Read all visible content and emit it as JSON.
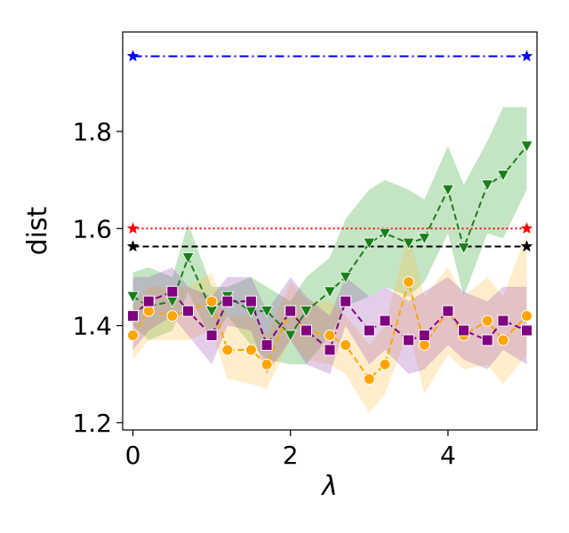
{
  "chart_data": {
    "type": "line",
    "xlabel": "λ",
    "ylabel": "dist",
    "xlim": [
      -0.13,
      5.13
    ],
    "ylim": [
      1.185,
      2.005
    ],
    "xticks": [
      0,
      2,
      4
    ],
    "xtick_labels": [
      "0",
      "2",
      "4"
    ],
    "yticks": [
      1.2,
      1.4,
      1.6,
      1.8
    ],
    "ytick_labels": [
      "1.2",
      "1.4",
      "1.6",
      "1.8"
    ],
    "grid": false,
    "legend": null,
    "x": [
      0,
      0.2,
      0.5,
      0.7,
      1.0,
      1.2,
      1.5,
      1.7,
      2.0,
      2.2,
      2.5,
      2.7,
      3.0,
      3.2,
      3.5,
      3.7,
      4.0,
      4.2,
      4.5,
      4.7,
      5.0
    ],
    "series": [
      {
        "marker": "triangle-down",
        "color": "#1a7f1a",
        "band_color": "#2ca02c",
        "linestyle": "dashed",
        "values": [
          1.46,
          1.44,
          1.45,
          1.54,
          1.43,
          1.46,
          1.43,
          1.43,
          1.38,
          1.43,
          1.47,
          1.5,
          1.57,
          1.59,
          1.57,
          1.58,
          1.68,
          1.56,
          1.69,
          1.71,
          1.77
        ],
        "band_upper": [
          1.51,
          1.52,
          1.5,
          1.61,
          1.48,
          1.48,
          1.5,
          1.48,
          1.45,
          1.5,
          1.54,
          1.62,
          1.68,
          1.7,
          1.68,
          1.66,
          1.77,
          1.69,
          1.78,
          1.85,
          1.85
        ],
        "band_lower": [
          1.4,
          1.37,
          1.39,
          1.47,
          1.37,
          1.42,
          1.36,
          1.33,
          1.32,
          1.32,
          1.38,
          1.44,
          1.46,
          1.48,
          1.46,
          1.49,
          1.59,
          1.46,
          1.59,
          1.58,
          1.68
        ]
      },
      {
        "marker": "circle",
        "color": "#ffa500",
        "band_color": "#ffbf46",
        "linestyle": "dashed",
        "values": [
          1.38,
          1.43,
          1.42,
          1.43,
          1.45,
          1.35,
          1.35,
          1.32,
          1.43,
          1.39,
          1.38,
          1.36,
          1.29,
          1.32,
          1.49,
          1.36,
          1.43,
          1.38,
          1.41,
          1.37,
          1.42
        ],
        "band_upper": [
          1.44,
          1.48,
          1.48,
          1.48,
          1.51,
          1.42,
          1.42,
          1.38,
          1.49,
          1.45,
          1.45,
          1.42,
          1.36,
          1.4,
          1.59,
          1.46,
          1.52,
          1.46,
          1.5,
          1.46,
          1.59
        ],
        "band_lower": [
          1.33,
          1.37,
          1.37,
          1.37,
          1.39,
          1.29,
          1.28,
          1.27,
          1.37,
          1.33,
          1.32,
          1.3,
          1.22,
          1.26,
          1.39,
          1.26,
          1.34,
          1.31,
          1.32,
          1.28,
          1.34
        ]
      },
      {
        "marker": "square",
        "color": "#800080",
        "band_color": "#9b4fb5",
        "linestyle": "dashed",
        "values": [
          1.42,
          1.45,
          1.47,
          1.43,
          1.38,
          1.45,
          1.45,
          1.36,
          1.43,
          1.39,
          1.35,
          1.45,
          1.39,
          1.41,
          1.37,
          1.38,
          1.43,
          1.39,
          1.37,
          1.41,
          1.39
        ],
        "band_upper": [
          1.5,
          1.5,
          1.52,
          1.48,
          1.46,
          1.5,
          1.5,
          1.43,
          1.5,
          1.46,
          1.42,
          1.5,
          1.46,
          1.48,
          1.45,
          1.47,
          1.5,
          1.47,
          1.45,
          1.48,
          1.48
        ],
        "band_lower": [
          1.35,
          1.39,
          1.42,
          1.38,
          1.32,
          1.4,
          1.39,
          1.3,
          1.37,
          1.32,
          1.3,
          1.4,
          1.32,
          1.35,
          1.3,
          1.31,
          1.36,
          1.33,
          1.31,
          1.35,
          1.32
        ]
      }
    ],
    "reference_lines": [
      {
        "y": 1.955,
        "x": [
          0,
          5
        ],
        "color": "#0000ff",
        "linestyle": "dashdot",
        "marker": "star"
      },
      {
        "y": 1.6,
        "x": [
          0,
          5
        ],
        "color": "#ff0000",
        "linestyle": "dotted",
        "marker": "star"
      },
      {
        "y": 1.563,
        "x": [
          0,
          5
        ],
        "color": "#000000",
        "linestyle": "dashed",
        "marker": "star"
      }
    ]
  }
}
